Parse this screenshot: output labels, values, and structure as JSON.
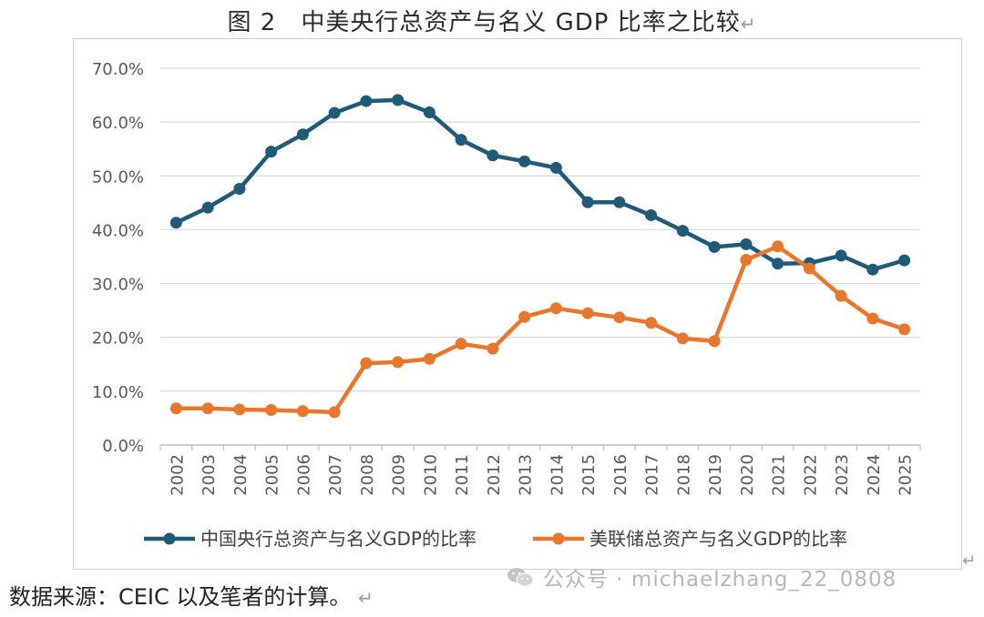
{
  "title": "图 2　中美央行总资产与名义 GDP 比率之比较",
  "return_mark": "↵",
  "source": "数据来源：CEIC 以及笔者的计算。",
  "watermark": "公众号 · michaelzhang_22_0808",
  "chart_data": {
    "type": "line",
    "title": "",
    "xlabel": "",
    "ylabel": "",
    "ylim": [
      0,
      70
    ],
    "yticks": [
      "0.0%",
      "10.0%",
      "20.0%",
      "30.0%",
      "40.0%",
      "50.0%",
      "60.0%",
      "70.0%"
    ],
    "grid": true,
    "legend_position": "bottom",
    "categories": [
      "2002",
      "2003",
      "2004",
      "2005",
      "2006",
      "2007",
      "2008",
      "2009",
      "2010",
      "2011",
      "2012",
      "2013",
      "2014",
      "2015",
      "2016",
      "2017",
      "2018",
      "2019",
      "2020",
      "2021",
      "2022",
      "2023",
      "2024",
      "2025"
    ],
    "series": [
      {
        "name": "中国央行总资产与名义GDP的比率",
        "color": "#1f5a78",
        "values": [
          41.3,
          44.1,
          47.6,
          54.5,
          57.7,
          61.7,
          63.9,
          64.1,
          61.8,
          56.7,
          53.8,
          52.7,
          51.5,
          45.1,
          45.1,
          42.7,
          39.8,
          36.8,
          37.3,
          33.7,
          33.8,
          35.2,
          32.6,
          34.3
        ]
      },
      {
        "name": "美联储总资产与名义GDP的比率",
        "color": "#e8772e",
        "values": [
          6.8,
          6.8,
          6.6,
          6.5,
          6.3,
          6.1,
          15.2,
          15.4,
          16.0,
          18.8,
          17.9,
          23.8,
          25.4,
          24.5,
          23.7,
          22.7,
          19.8,
          19.3,
          34.4,
          36.9,
          32.8,
          27.7,
          23.5,
          21.5
        ]
      }
    ]
  }
}
